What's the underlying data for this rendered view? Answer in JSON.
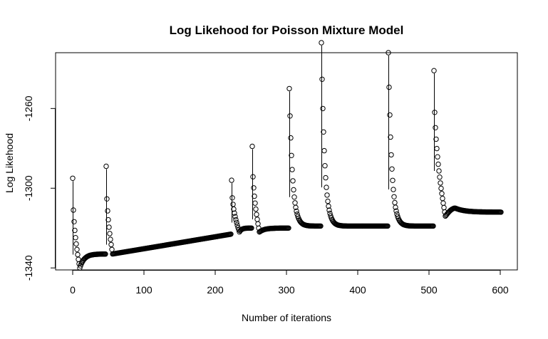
{
  "chart_data": {
    "type": "scatter",
    "title": "Log Likehood for Poisson Mixture Model",
    "xlabel": "Number of iterations",
    "ylabel": "Log Likehood",
    "xlim": [
      -24,
      624
    ],
    "ylim": [
      -1341,
      -1232
    ],
    "xticks": [
      0,
      100,
      200,
      300,
      400,
      500,
      600
    ],
    "yticks": [
      -1340,
      -1300,
      -1260
    ],
    "grid": false,
    "legend": "none",
    "marker": "open-circle",
    "segments": [
      {
        "start": 0,
        "end": 47,
        "start_value": -1295,
        "min_value": -1340,
        "min_at": 10,
        "end_value": -1333
      },
      {
        "start": 47,
        "end": 223,
        "start_value": -1289,
        "min_value": -1333,
        "min_at": 56,
        "end_value": -1323
      },
      {
        "start": 223,
        "end": 252,
        "start_value": -1296,
        "min_value": -1322,
        "min_at": 234,
        "end_value": -1320
      },
      {
        "start": 252,
        "end": 304,
        "start_value": -1279,
        "min_value": -1322,
        "min_at": 262,
        "end_value": -1320
      },
      {
        "start": 304,
        "end": 349,
        "start_value": -1250,
        "end_value": -1319
      },
      {
        "start": 349,
        "end": 443,
        "start_value": -1227,
        "end_value": -1319
      },
      {
        "start": 443,
        "end": 507,
        "start_value": -1232,
        "end_value": -1319
      },
      {
        "start": 507,
        "end": 601,
        "start_value": -1241,
        "min_value": -1314,
        "min_at": 523,
        "peak_value": -1310,
        "peak_at": 537,
        "end_value": -1312
      }
    ]
  }
}
